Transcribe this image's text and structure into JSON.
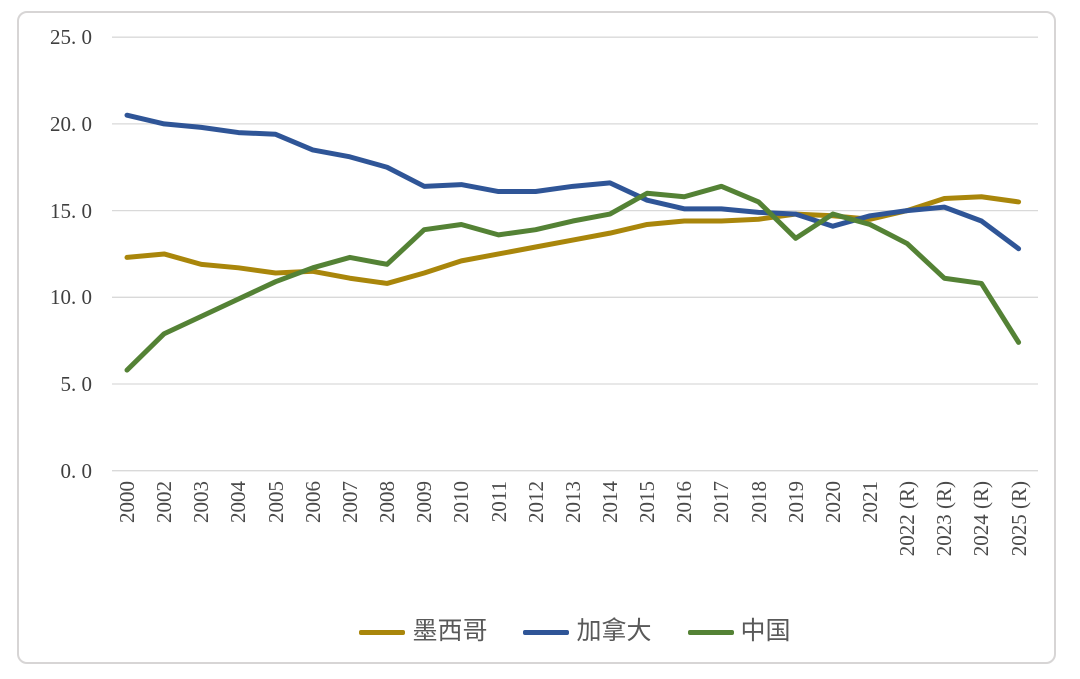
{
  "chart_data": {
    "type": "line",
    "title": "",
    "xlabel": "",
    "ylabel": "",
    "ylim": [
      0,
      25
    ],
    "y_tick_interval": 5,
    "y_tick_labels": [
      "0. 0",
      "5. 0",
      "10. 0",
      "15. 0",
      "20. 0",
      "25. 0"
    ],
    "grid": true,
    "gridline_color": "#d9d9d9",
    "legend_position": "bottom",
    "categories": [
      "2000",
      "2002",
      "2003",
      "2004",
      "2005",
      "2006",
      "2007",
      "2008",
      "2009",
      "2010",
      "2011",
      "2012",
      "2013",
      "2014",
      "2015",
      "2016",
      "2017",
      "2018",
      "2019",
      "2020",
      "2021",
      "2022 (R)",
      "2023 (R)",
      "2024 (R)",
      "2025 (R)"
    ],
    "series": [
      {
        "name": "墨西哥",
        "color": "#a9860b",
        "values": [
          12.3,
          12.5,
          11.9,
          11.7,
          11.4,
          11.5,
          11.1,
          10.8,
          11.4,
          12.1,
          12.5,
          12.9,
          13.3,
          13.7,
          14.2,
          14.4,
          14.4,
          14.5,
          14.8,
          14.7,
          14.5,
          15.0,
          15.7,
          15.8,
          15.5
        ]
      },
      {
        "name": "加拿大",
        "color": "#2f5597",
        "values": [
          20.5,
          20.0,
          19.8,
          19.5,
          19.4,
          18.5,
          18.1,
          17.5,
          16.4,
          16.5,
          16.1,
          16.1,
          16.4,
          16.6,
          15.6,
          15.1,
          15.1,
          14.9,
          14.8,
          14.1,
          14.7,
          15.0,
          15.2,
          14.4,
          12.8
        ]
      },
      {
        "name": "中国",
        "color": "#548235",
        "values": [
          5.8,
          7.9,
          8.9,
          9.9,
          10.9,
          11.7,
          12.3,
          11.9,
          13.9,
          14.2,
          13.6,
          13.9,
          14.4,
          14.8,
          16.0,
          15.8,
          16.4,
          15.5,
          13.4,
          14.8,
          14.2,
          13.1,
          11.1,
          10.8,
          7.4
        ]
      }
    ]
  }
}
